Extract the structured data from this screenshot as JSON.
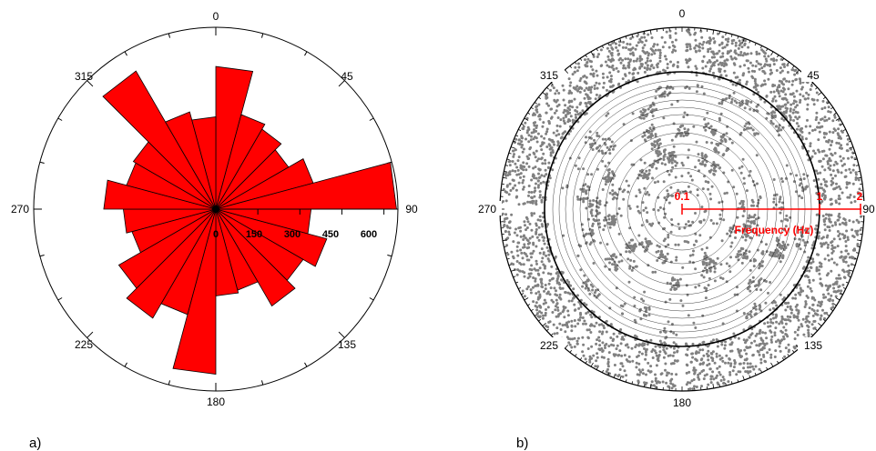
{
  "chart_data": [
    {
      "type": "rose",
      "panel_label": "a)",
      "angle_labels": [
        "0",
        "45",
        "90",
        "135",
        "180",
        "225",
        "270",
        "315"
      ],
      "radial_tick_labels": [
        "0",
        "150",
        "300",
        "450",
        "600"
      ],
      "radial_max": 650,
      "bin_width_deg": 15,
      "bins_start_deg": [
        0,
        15,
        30,
        45,
        60,
        75,
        90,
        105,
        120,
        135,
        150,
        165,
        180,
        195,
        210,
        225,
        240,
        255,
        270,
        285,
        300,
        315,
        330,
        345
      ],
      "values": [
        510,
        350,
        330,
        300,
        360,
        645,
        340,
        410,
        360,
        400,
        300,
        310,
        590,
        390,
        450,
        400,
        310,
        330,
        400,
        330,
        340,
        570,
        360,
        330
      ],
      "colors": {
        "bar": "#ff0000",
        "edge": "#000000"
      }
    },
    {
      "type": "scatter-polar",
      "panel_label": "b)",
      "angle_labels": [
        "0",
        "45",
        "90",
        "135",
        "180",
        "225",
        "270",
        "315"
      ],
      "radial_axis_label": "Frequency (Hz)",
      "radial_tick_labels": [
        "0.1",
        "1",
        "2"
      ],
      "colors": {
        "points": "#808080",
        "axis": "#ff0000"
      }
    }
  ]
}
